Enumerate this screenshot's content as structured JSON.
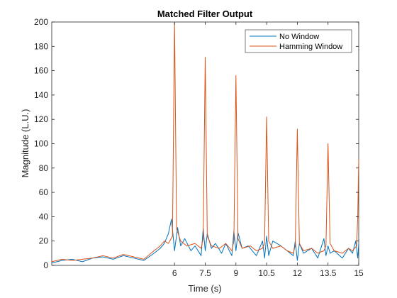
{
  "chart_data": {
    "type": "line",
    "title": "Matched Filter Output",
    "xlabel": "Time (s)",
    "ylabel": "Magnitude (L.U.)",
    "xlim": [
      0,
      15
    ],
    "ylim": [
      0,
      200
    ],
    "xticks": [
      6,
      7.5,
      9,
      10.5,
      12,
      13.5,
      15
    ],
    "xtick_labels": [
      "6",
      "7.5",
      "9",
      "10.5",
      "12",
      "13.5",
      "15"
    ],
    "yticks": [
      0,
      20,
      40,
      60,
      80,
      100,
      120,
      140,
      160,
      180,
      200
    ],
    "ytick_labels": [
      "0",
      "20",
      "40",
      "60",
      "80",
      "100",
      "120",
      "140",
      "160",
      "180",
      "200"
    ],
    "grid": false,
    "legend_position": "top-right",
    "series": [
      {
        "name": "No Window",
        "color": "#0072BD",
        "x": [
          0,
          0.5,
          1,
          1.5,
          2,
          2.5,
          3,
          3.5,
          4,
          4.5,
          5,
          5.3,
          5.5,
          5.7,
          5.85,
          6.0,
          6.15,
          6.3,
          6.5,
          6.8,
          7.0,
          7.3,
          7.4,
          7.5,
          7.6,
          7.8,
          8.0,
          8.3,
          8.5,
          8.8,
          8.9,
          9.0,
          9.1,
          9.3,
          9.6,
          10.0,
          10.3,
          10.4,
          10.5,
          10.6,
          10.8,
          11.2,
          11.5,
          11.8,
          11.9,
          12.0,
          12.1,
          12.3,
          12.7,
          13.0,
          13.3,
          13.4,
          13.5,
          13.6,
          13.8,
          14.2,
          14.5,
          14.7,
          14.85,
          14.95,
          15.0
        ],
        "y": [
          2,
          4,
          5,
          3,
          6,
          7,
          5,
          8,
          6,
          4,
          10,
          14,
          18,
          26,
          38,
          12,
          31,
          16,
          22,
          12,
          16,
          8,
          30,
          12,
          26,
          14,
          18,
          10,
          18,
          8,
          28,
          12,
          27,
          14,
          16,
          8,
          20,
          6,
          24,
          8,
          20,
          16,
          12,
          8,
          20,
          4,
          18,
          10,
          14,
          6,
          22,
          8,
          16,
          10,
          12,
          6,
          14,
          10,
          20,
          6,
          18
        ]
      },
      {
        "name": "Hamming Window",
        "color": "#D95319",
        "x": [
          0,
          0.5,
          1,
          1.5,
          2,
          2.5,
          3,
          3.5,
          4,
          4.5,
          5,
          5.3,
          5.5,
          5.7,
          5.9,
          6.0,
          6.1,
          6.3,
          6.6,
          7.0,
          7.3,
          7.4,
          7.5,
          7.6,
          7.8,
          8.2,
          8.5,
          8.8,
          8.9,
          9.0,
          9.1,
          9.3,
          9.7,
          10.0,
          10.3,
          10.4,
          10.5,
          10.6,
          10.8,
          11.2,
          11.5,
          11.8,
          11.9,
          12.0,
          12.1,
          12.3,
          12.7,
          13.0,
          13.3,
          13.4,
          13.5,
          13.6,
          13.8,
          14.2,
          14.5,
          14.7,
          14.9,
          14.95,
          15.0
        ],
        "y": [
          3,
          5,
          4,
          5,
          6,
          8,
          6,
          9,
          7,
          5,
          12,
          16,
          20,
          18,
          24,
          200,
          30,
          20,
          16,
          18,
          14,
          22,
          171,
          24,
          16,
          14,
          18,
          12,
          20,
          156,
          22,
          14,
          16,
          12,
          14,
          18,
          122,
          20,
          14,
          16,
          12,
          10,
          16,
          112,
          18,
          12,
          14,
          10,
          12,
          16,
          100,
          18,
          12,
          10,
          14,
          12,
          16,
          40,
          87
        ]
      }
    ]
  }
}
